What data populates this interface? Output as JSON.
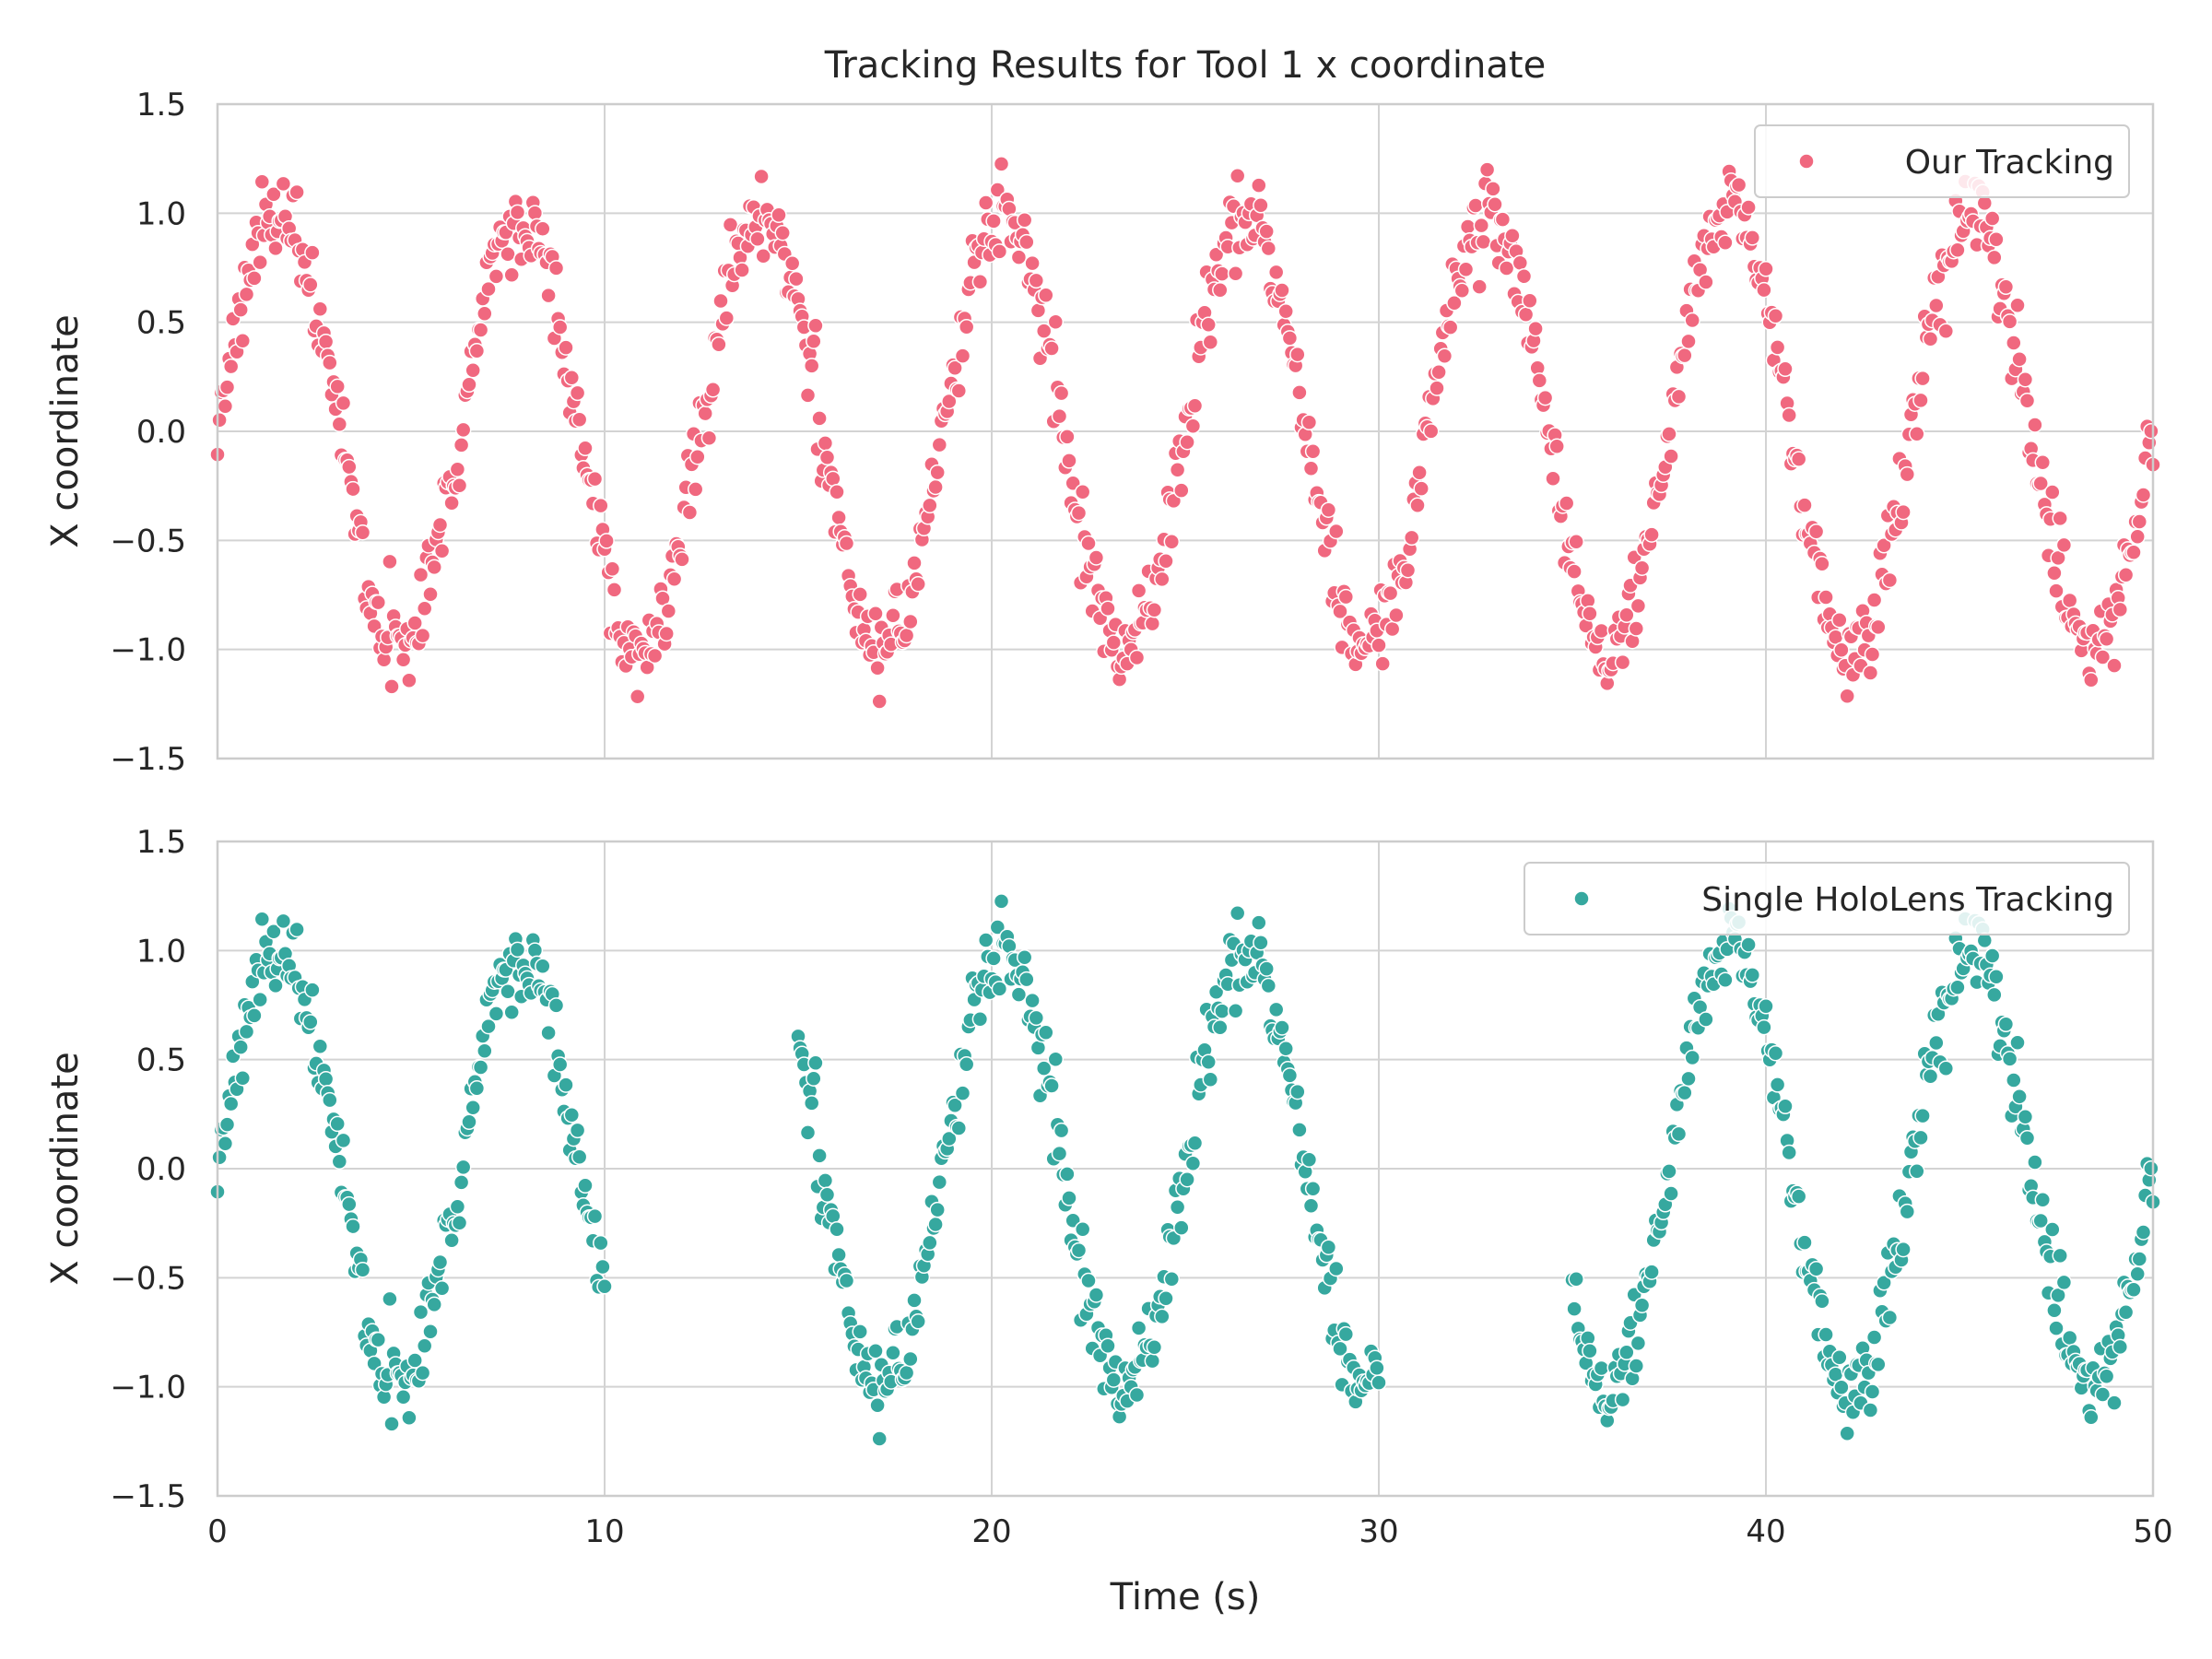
{
  "chart_data": [
    {
      "type": "scatter",
      "title": "Tracking Results for Tool 1 x coordinate",
      "xlabel": "",
      "ylabel": "X coordinate",
      "xlim": [
        0,
        50
      ],
      "ylim": [
        -1.5,
        1.5
      ],
      "xticks": [
        "0",
        "10",
        "20",
        "30",
        "40",
        "50"
      ],
      "xtick_labels_visible": false,
      "yticks": [
        "1.5",
        "1.0",
        "0.5",
        "0.0",
        "−0.5",
        "−1.0",
        "−1.5"
      ],
      "grid": true,
      "legend_position": "top-right",
      "series": [
        {
          "name": "Our Tracking",
          "color": "#f0687f",
          "model": {
            "amplitude": 1.0,
            "period_s": 6.25,
            "offset": 0.0,
            "noise": 0.1,
            "sample_step_s": 0.05
          },
          "segments": [
            [
              0,
              50
            ]
          ]
        }
      ]
    },
    {
      "type": "scatter",
      "title": "",
      "xlabel": "Time (s)",
      "ylabel": "X coordinate",
      "xlim": [
        0,
        50
      ],
      "ylim": [
        -1.5,
        1.5
      ],
      "xticks": [
        "0",
        "10",
        "20",
        "30",
        "40",
        "50"
      ],
      "xtick_labels_visible": true,
      "yticks": [
        "1.5",
        "1.0",
        "0.5",
        "0.0",
        "−0.5",
        "−1.0",
        "−1.5"
      ],
      "grid": true,
      "legend_position": "top-right",
      "series": [
        {
          "name": "Single HoloLens Tracking",
          "color": "#36a89f",
          "model": {
            "amplitude": 1.0,
            "period_s": 6.25,
            "offset": 0.0,
            "noise": 0.1,
            "sample_step_s": 0.05
          },
          "segments": [
            [
              0,
              10
            ],
            [
              15,
              30
            ],
            [
              35,
              50
            ]
          ]
        }
      ]
    }
  ]
}
